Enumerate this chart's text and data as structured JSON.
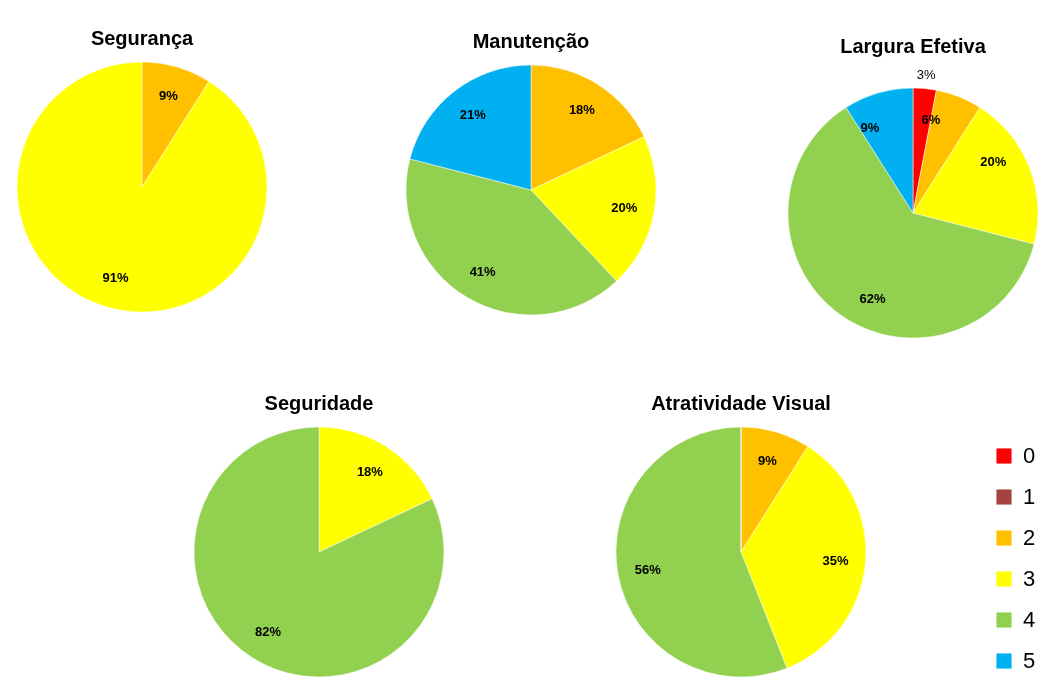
{
  "chart_data": [
    {
      "type": "pie",
      "title": "Segurança",
      "categories": [
        null,
        null
      ],
      "values": [
        9,
        91
      ],
      "value_labels": [
        "9%",
        "91%"
      ],
      "colors": [
        "#ffc000",
        "#ffff00"
      ]
    },
    {
      "type": "pie",
      "title": "Manutenção",
      "categories": [
        null,
        null,
        null,
        null
      ],
      "values": [
        18,
        20,
        41,
        21
      ],
      "value_labels": [
        "18%",
        "20%",
        "41%",
        "21%"
      ],
      "colors": [
        "#ffc000",
        "#ffff00",
        "#92d050",
        "#00b0f0"
      ]
    },
    {
      "type": "pie",
      "title": "Largura Efetiva",
      "categories": [
        null,
        null,
        null,
        null,
        null
      ],
      "values": [
        3,
        6,
        20,
        62,
        9
      ],
      "value_labels": [
        "3%",
        "6%",
        "20%",
        "62%",
        "9%"
      ],
      "colors": [
        "#ff0000",
        "#ffc000",
        "#ffff00",
        "#92d050",
        "#00b0f0"
      ]
    },
    {
      "type": "pie",
      "title": "Seguridade",
      "categories": [
        null,
        null
      ],
      "values": [
        18,
        82
      ],
      "value_labels": [
        "18%",
        "82%"
      ],
      "colors": [
        "#ffff00",
        "#92d050"
      ]
    },
    {
      "type": "pie",
      "title": "Atratividade Visual",
      "categories": [
        "0",
        "1",
        "2",
        "3",
        "4",
        "5"
      ],
      "values": [
        0,
        0,
        9,
        35,
        56,
        0
      ],
      "value_labels": [
        null,
        null,
        "9%",
        "35%",
        "56%",
        null
      ],
      "colors": [
        "#ff0000",
        "#a5443f",
        "#ffc000",
        "#ffff00",
        "#92d050",
        "#00b0f0"
      ],
      "legend": "right"
    }
  ]
}
